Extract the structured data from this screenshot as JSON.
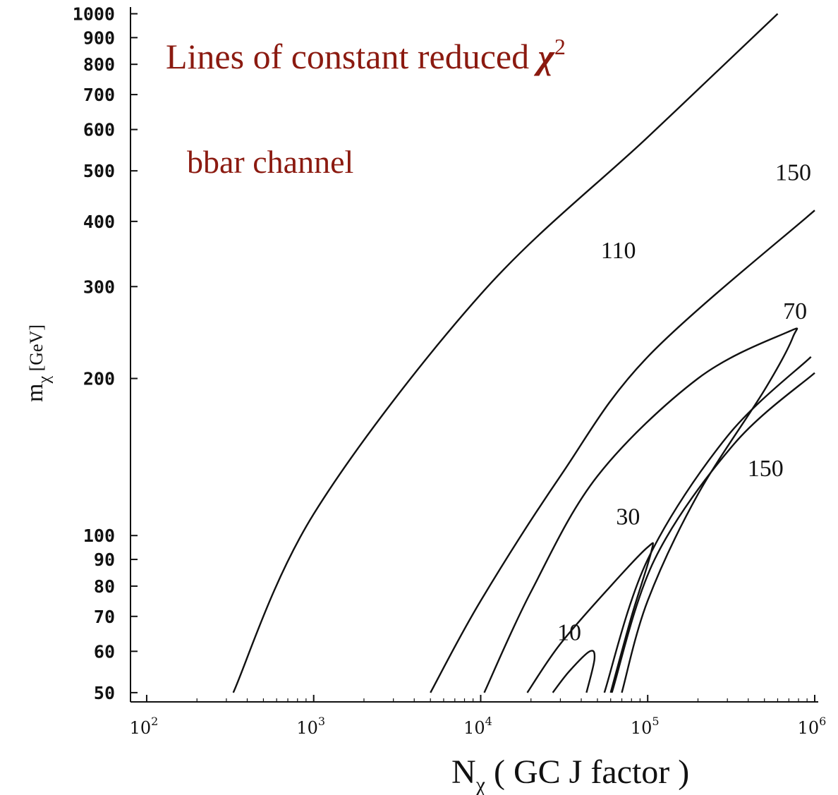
{
  "chart_data": {
    "type": "line",
    "title_prefix": "Lines of constant reduced ",
    "title_symbol": "χ",
    "title_exp": "2",
    "subtitle": "bbar channel",
    "xlabel_symbol": "N",
    "xlabel_sub": "χ",
    "xlabel_rest": " ( GC J factor )",
    "ylabel_symbol": "m",
    "ylabel_sub": "χ",
    "ylabel_unit": " [GeV]",
    "x_scale": "log",
    "y_scale": "log",
    "xlim": [
      80,
      1050000
    ],
    "ylim": [
      48,
      1030
    ],
    "grid": false,
    "x_ticks": [
      {
        "base": "10",
        "exp": "2",
        "value": 100
      },
      {
        "base": "10",
        "exp": "3",
        "value": 1000
      },
      {
        "base": "10",
        "exp": "4",
        "value": 10000
      },
      {
        "base": "10",
        "exp": "5",
        "value": 100000
      },
      {
        "base": "10",
        "exp": "6",
        "value": 1000000
      }
    ],
    "y_ticks": [
      {
        "label": "50",
        "value": 50
      },
      {
        "label": "60",
        "value": 60
      },
      {
        "label": "70",
        "value": 70
      },
      {
        "label": "80",
        "value": 80
      },
      {
        "label": "90",
        "value": 90
      },
      {
        "label": "100",
        "value": 100
      },
      {
        "label": "200",
        "value": 200
      },
      {
        "label": "300",
        "value": 300
      },
      {
        "label": "400",
        "value": 400
      },
      {
        "label": "500",
        "value": 500
      },
      {
        "label": "600",
        "value": 600
      },
      {
        "label": "700",
        "value": 700
      },
      {
        "label": "800",
        "value": 800
      },
      {
        "label": "900",
        "value": 900
      },
      {
        "label": "1000",
        "value": 1000
      }
    ],
    "series": [
      {
        "level": "150",
        "points": [
          [
            330,
            50
          ],
          [
            1000,
            110
          ],
          [
            10000,
            290
          ],
          [
            100000,
            580
          ],
          [
            600000,
            1000
          ]
        ]
      },
      {
        "level": "110",
        "points": [
          [
            5000,
            50
          ],
          [
            10000,
            75
          ],
          [
            30000,
            130
          ],
          [
            100000,
            220
          ],
          [
            1000000,
            420
          ]
        ]
      },
      {
        "level": "70",
        "points": [
          [
            10500,
            50
          ],
          [
            20000,
            78
          ],
          [
            50000,
            130
          ],
          [
            200000,
            200
          ],
          [
            680000,
            245
          ],
          [
            740000,
            240
          ],
          [
            500000,
            190
          ],
          [
            200000,
            120
          ],
          [
            100000,
            75
          ],
          [
            70000,
            50
          ]
        ]
      },
      {
        "level": "30",
        "points": [
          [
            19000,
            50
          ],
          [
            30000,
            62
          ],
          [
            60000,
            80
          ],
          [
            100000,
            95
          ],
          [
            105000,
            93
          ],
          [
            80000,
            70
          ],
          [
            60000,
            50
          ]
        ]
      },
      {
        "level": "10",
        "points": [
          [
            27000,
            50
          ],
          [
            34000,
            55
          ],
          [
            45000,
            60
          ],
          [
            48000,
            58
          ],
          [
            43000,
            50
          ]
        ]
      },
      {
        "level": "150",
        "points": [
          [
            55000,
            50
          ],
          [
            100000,
            90
          ],
          [
            300000,
            155
          ],
          [
            950000,
            220
          ]
        ]
      },
      {
        "level": "150",
        "points": [
          [
            61000,
            50
          ],
          [
            110000,
            90
          ],
          [
            330000,
            150
          ],
          [
            1000000,
            205
          ]
        ]
      }
    ],
    "annotations": [
      {
        "text": "150",
        "x": 1700000,
        "y": 480
      },
      {
        "text": "110",
        "x": 85000,
        "y": 340
      },
      {
        "text": "70",
        "x": 900000,
        "y": 260
      },
      {
        "text": "30",
        "x": 90000,
        "y": 105
      },
      {
        "text": "10",
        "x": 40000,
        "y": 63
      },
      {
        "text": "150",
        "x": 650000,
        "y": 130
      }
    ]
  }
}
